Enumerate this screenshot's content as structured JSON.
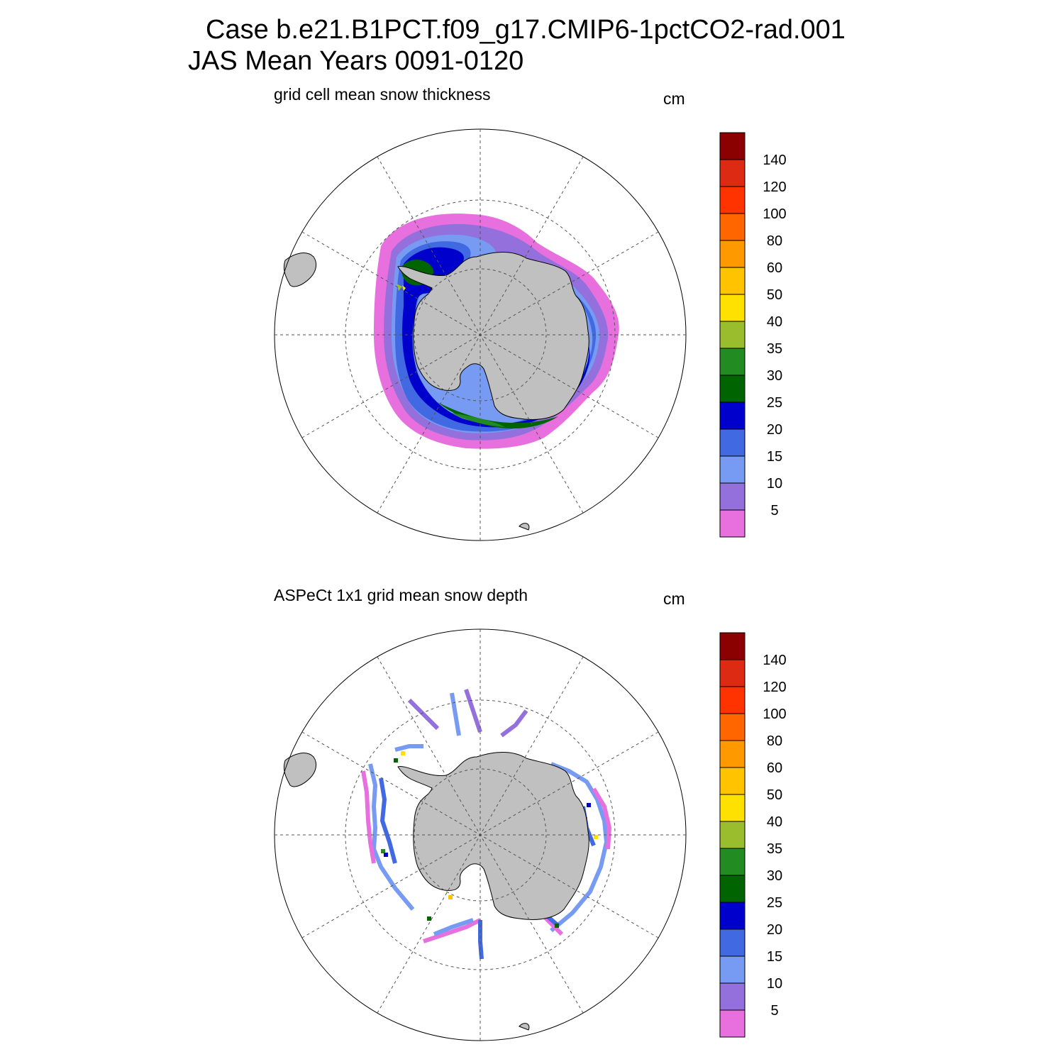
{
  "header": {
    "title_line1": "Case b.e21.B1PCT.f09_g17.CMIP6-1pctCO2-rad.001",
    "title_line2": "JAS Mean   Years 0091-0120"
  },
  "panels": [
    {
      "title": "grid cell mean snow thickness",
      "units": "cm"
    },
    {
      "title": "ASPeCt 1x1 grid mean snow depth",
      "units": "cm"
    }
  ],
  "colorbar": {
    "levels": [
      "5",
      "10",
      "15",
      "20",
      "25",
      "30",
      "35",
      "40",
      "50",
      "60",
      "80",
      "100",
      "120",
      "140"
    ],
    "colors": [
      "#e76fde",
      "#9370db",
      "#779bf3",
      "#4169e1",
      "#0000cd",
      "#006400",
      "#228b22",
      "#9abd2d",
      "#ffe100",
      "#ffc300",
      "#ff9900",
      "#ff6600",
      "#ff3300",
      "#dd2a12",
      "#8b0000"
    ]
  },
  "map": {
    "land_color": "#c0c0c0",
    "projection": "south polar stereographic"
  }
}
